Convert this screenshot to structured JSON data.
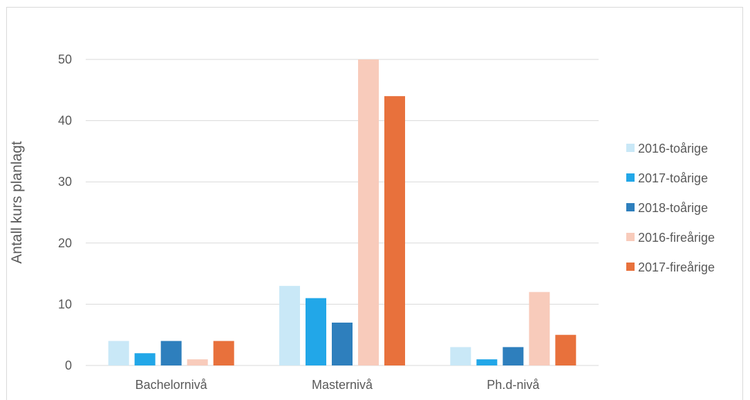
{
  "chart_data": {
    "type": "bar",
    "title": "",
    "xlabel": "",
    "ylabel": "Antall kurs planlagt",
    "ylim": [
      0,
      50
    ],
    "yticks": [
      0,
      10,
      20,
      30,
      40,
      50
    ],
    "grid": true,
    "legend_position": "right",
    "categories": [
      "Bachelornivå",
      "Masternivå",
      "Ph.d-nivå"
    ],
    "series": [
      {
        "name": "2016-toårige",
        "color": "#c9e8f7",
        "values": [
          4,
          13,
          3
        ]
      },
      {
        "name": "2017-toårige",
        "color": "#22a7e8",
        "values": [
          2,
          11,
          1
        ]
      },
      {
        "name": "2018-toårige",
        "color": "#2e7fbd",
        "values": [
          4,
          7,
          3
        ]
      },
      {
        "name": "2016-fireårige",
        "color": "#f8cbbb",
        "values": [
          1,
          50,
          12
        ]
      },
      {
        "name": "2017-fireårige",
        "color": "#e8713c",
        "values": [
          4,
          44,
          5
        ]
      }
    ]
  }
}
